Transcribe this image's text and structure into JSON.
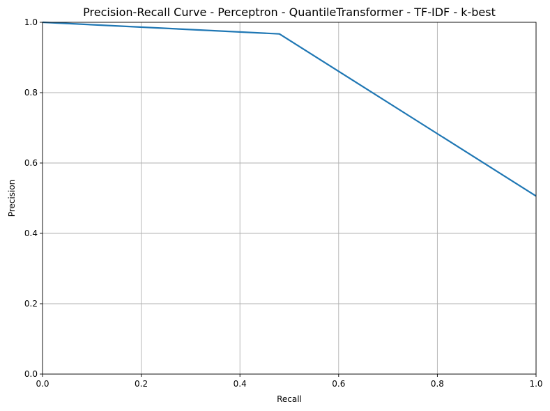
{
  "chart_data": {
    "type": "line",
    "title": "Precision-Recall Curve - Perceptron - QuantileTransformer - TF-IDF - k-best",
    "xlabel": "Recall",
    "ylabel": "Precision",
    "xlim": [
      0.0,
      1.0
    ],
    "ylim": [
      0.0,
      1.0
    ],
    "xticks": [
      "0.0",
      "0.2",
      "0.4",
      "0.6",
      "0.8",
      "1.0"
    ],
    "yticks": [
      "0.0",
      "0.2",
      "0.4",
      "0.6",
      "0.8",
      "1.0"
    ],
    "grid": true,
    "series": [
      {
        "color": "#1f77b4",
        "x": [
          0.0,
          0.48,
          1.0
        ],
        "y": [
          1.0,
          0.967,
          0.506
        ]
      }
    ]
  }
}
